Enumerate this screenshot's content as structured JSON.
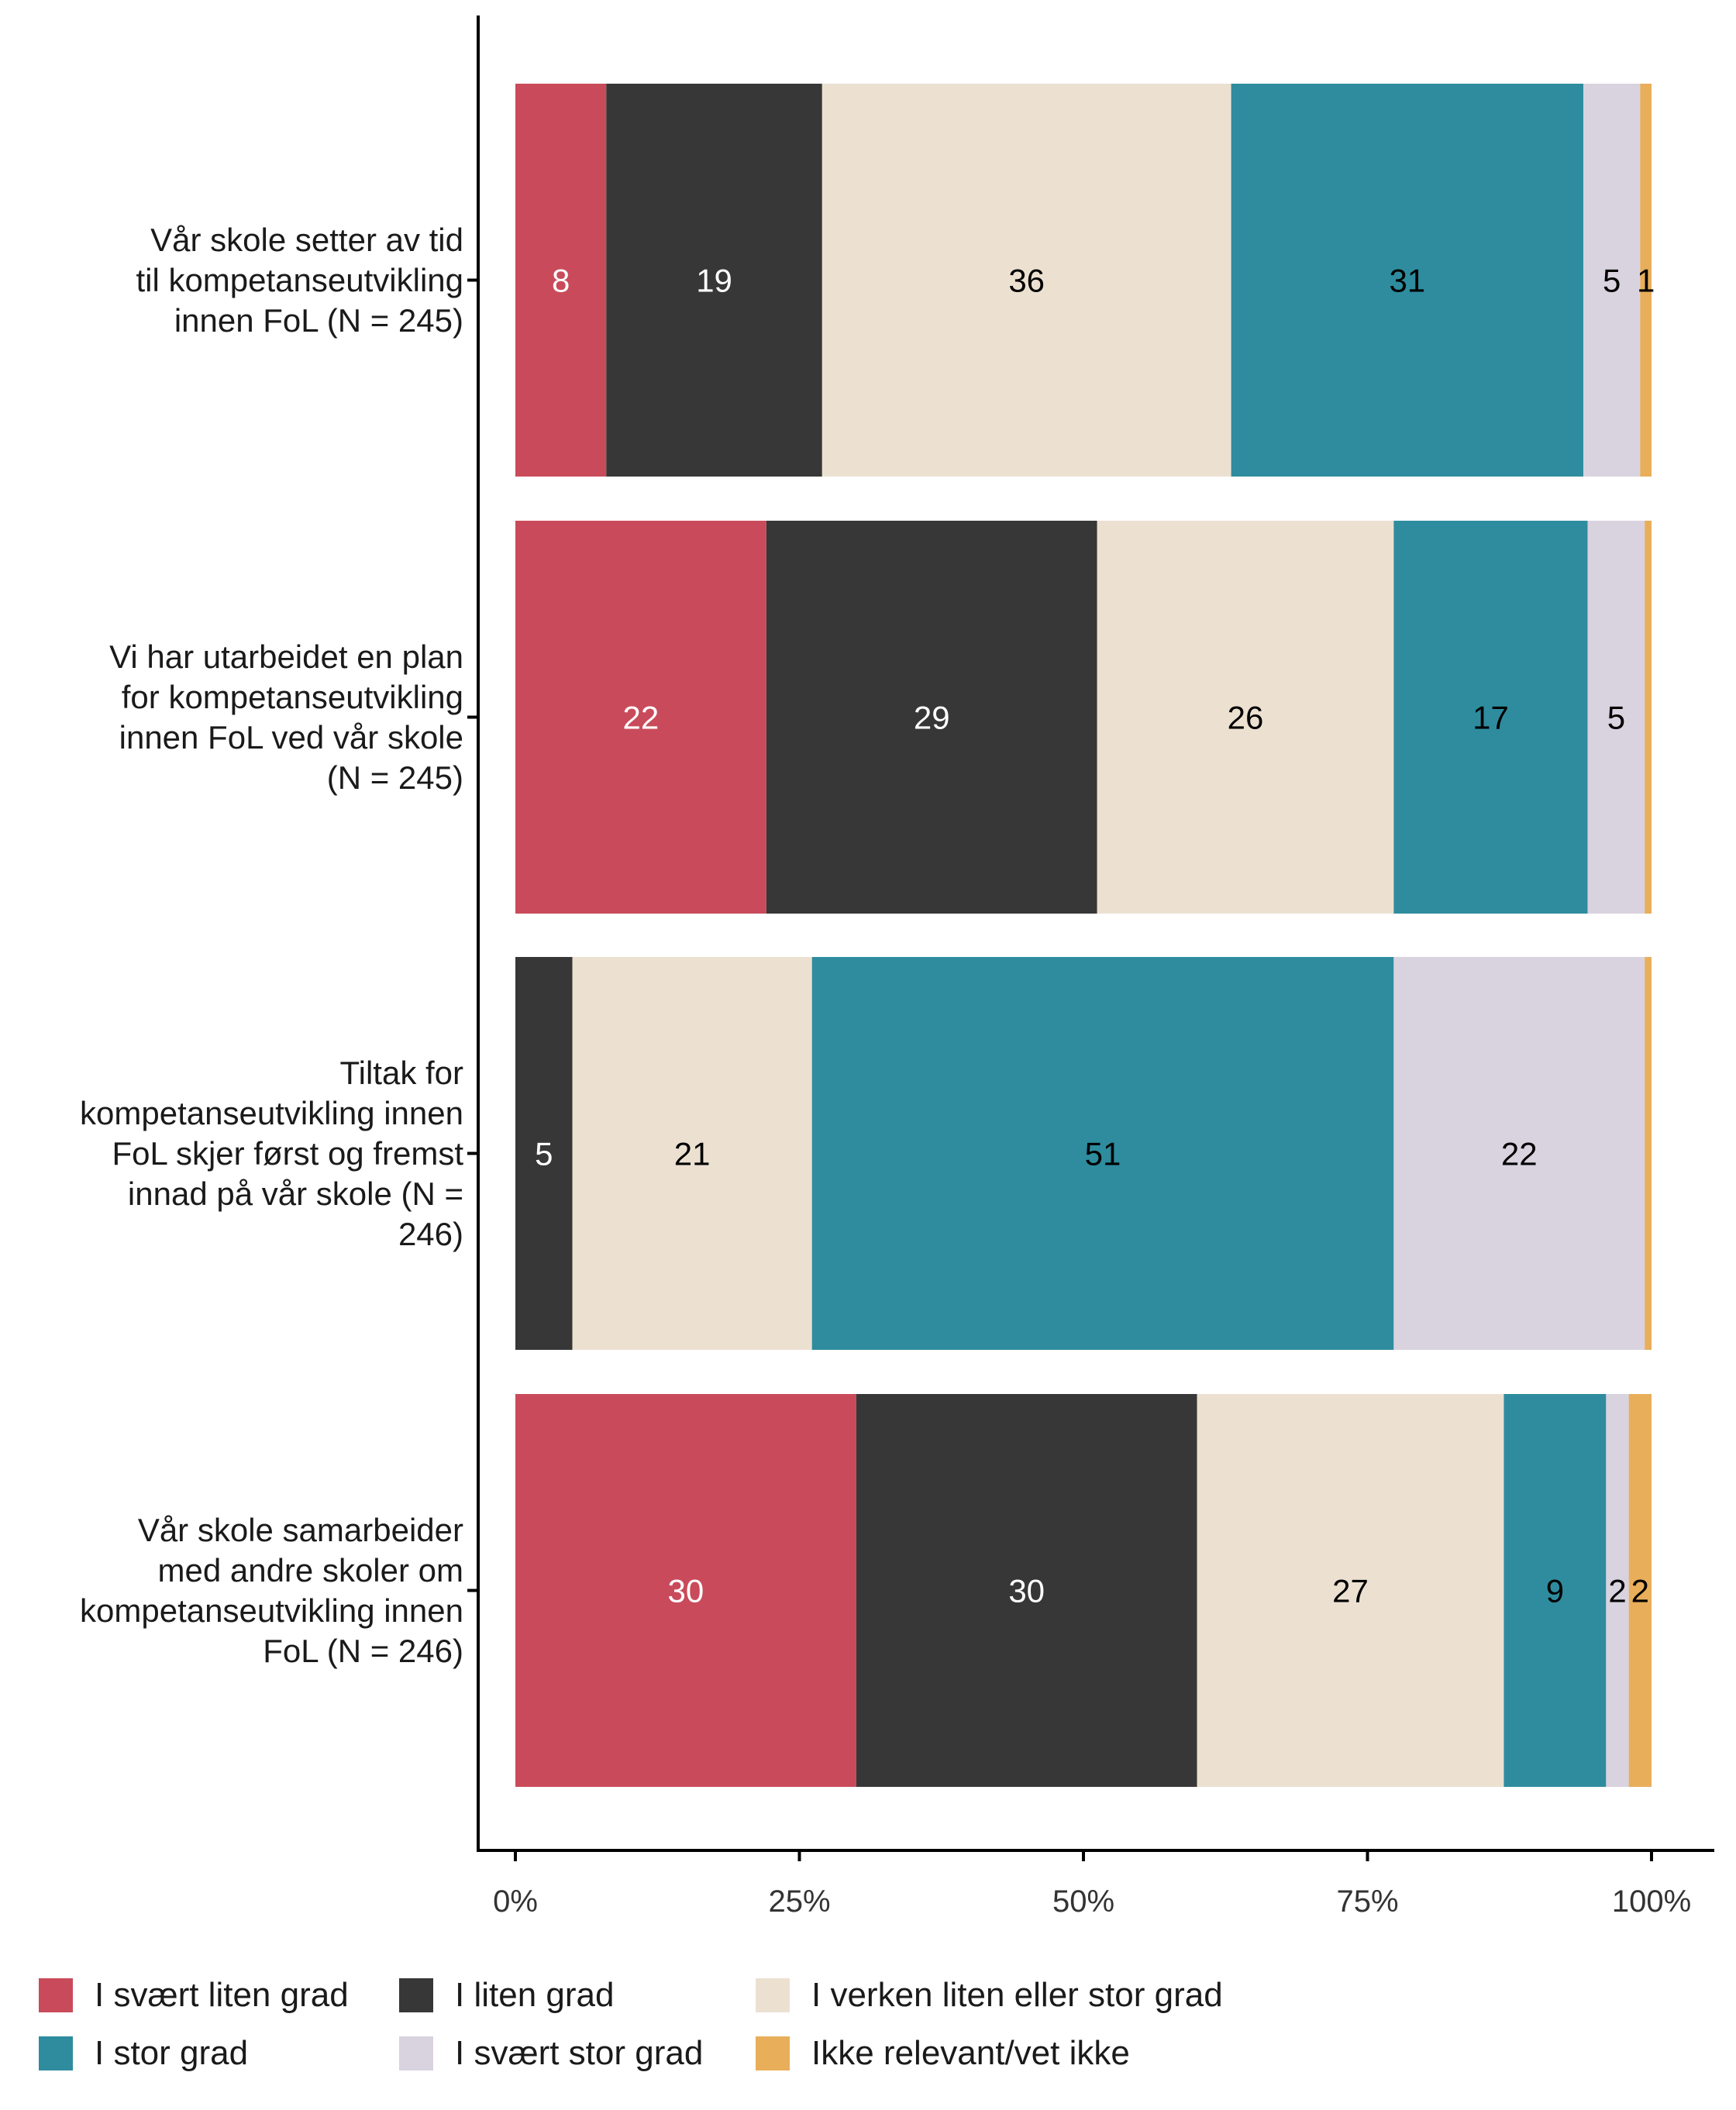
{
  "chart_data": {
    "type": "bar",
    "orientation": "horizontal",
    "stacked": true,
    "percent": true,
    "title": "",
    "xlabel": "",
    "ylabel": "",
    "xlim": [
      0,
      100
    ],
    "xticks": [
      "0%",
      "25%",
      "50%",
      "75%",
      "100%"
    ],
    "grid": false,
    "legend_position": "bottom",
    "categories": [
      "Vår skole setter av tid til kompetanseutvikling innen FoL (N = 245)",
      "Vi har utarbeidet en plan for kompetanseutvikling innen FoL ved vår skole (N = 245)",
      "Tiltak for kompetanseutvikling innen FoL skjer først og fremst innad på vår skole (N = 246)",
      "Vår skole samarbeider med andre skoler om kompetanseutvikling innen FoL (N = 246)"
    ],
    "category_lines": [
      [
        "Vår skole setter av tid",
        "til kompetanseutvikling",
        "innen FoL (N = 245)"
      ],
      [
        "Vi har utarbeidet en plan",
        "for kompetanseutvikling",
        "innen FoL ved vår skole",
        "(N = 245)"
      ],
      [
        "Tiltak for",
        "kompetanseutvikling innen",
        "FoL skjer først og fremst",
        "innad på vår skole (N =",
        "246)"
      ],
      [
        "Vår skole samarbeider",
        "med andre skoler om",
        "kompetanseutvikling innen",
        "FoL (N = 246)"
      ]
    ],
    "series": [
      {
        "name": "I svært liten grad",
        "color": "#c94b5b",
        "label_color": "#ffffff",
        "values": [
          8,
          22,
          0,
          30
        ],
        "labels": [
          "8",
          "22",
          "",
          "30"
        ]
      },
      {
        "name": "I liten grad",
        "color": "#373737",
        "label_color": "#ffffff",
        "values": [
          19,
          29,
          5,
          30
        ],
        "labels": [
          "19",
          "29",
          "5",
          "30"
        ]
      },
      {
        "name": "I verken liten eller stor grad",
        "color": "#ece1d1",
        "label_color": "#000000",
        "values": [
          36,
          26,
          21,
          27
        ],
        "labels": [
          "36",
          "26",
          "21",
          "27"
        ]
      },
      {
        "name": "I stor grad",
        "color": "#2e8c9e",
        "label_color": "#000000",
        "values": [
          31,
          17,
          51,
          9
        ],
        "labels": [
          "31",
          "17",
          "51",
          "9"
        ]
      },
      {
        "name": "I svært stor grad",
        "color": "#d9d2df",
        "label_color": "#000000",
        "values": [
          5,
          5,
          22,
          2
        ],
        "labels": [
          "5",
          "5",
          "22",
          "2"
        ]
      },
      {
        "name": "Ikke relevant/vet ikke",
        "color": "#e8ae5a",
        "label_color": "#000000",
        "values": [
          1,
          0.6,
          0.6,
          2
        ],
        "labels": [
          "1",
          "",
          "",
          "2"
        ]
      }
    ]
  }
}
